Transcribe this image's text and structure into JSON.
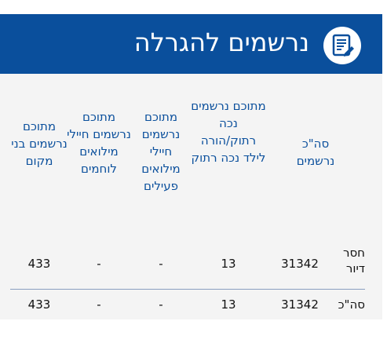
{
  "header": {
    "title": "נרשמים להגרלה",
    "icon": "form-edit-icon",
    "bg_color": "#0a4f9c"
  },
  "table": {
    "columns": [
      "סה\"כ נרשמים",
      "מתוכם נרשמים נכה רתוק/הורה לילד נכה רתוק",
      "מתוכם נרשמים חיילי מילואים פעילים",
      "מתוכם נרשמים חיילי מילואים לוחמים",
      "מתוכם נרשמים בני מקום"
    ],
    "rows": [
      {
        "label": "חסר דיור",
        "values": [
          "31342",
          "13",
          "-",
          "-",
          "433"
        ]
      },
      {
        "label": "סה\"כ",
        "values": [
          "31342",
          "13",
          "-",
          "-",
          "433"
        ]
      }
    ]
  }
}
